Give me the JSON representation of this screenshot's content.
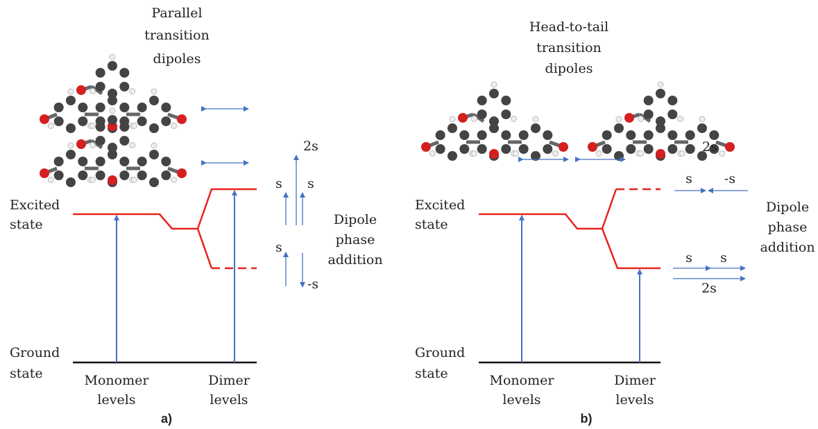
{
  "panels": [
    {
      "title": [
        "Parallel",
        "transition",
        "dipoles"
      ],
      "excited": [
        "Excited",
        "state"
      ],
      "ground": [
        "Ground",
        "state"
      ],
      "monomer": [
        "Monomer",
        "levels"
      ],
      "dimer": [
        "Dimer",
        "levels"
      ],
      "phase": [
        "Dipole",
        "phase",
        "addition"
      ],
      "caption": "a)",
      "vectors": [
        "2s",
        "s",
        "s",
        "s",
        "-s"
      ]
    },
    {
      "title": [
        "Head-to-tail",
        "transition",
        "dipoles"
      ],
      "excited": [
        "Excited",
        "state"
      ],
      "ground": [
        "Ground",
        "state"
      ],
      "monomer": [
        "Monomer",
        "levels"
      ],
      "dimer": [
        "Dimer",
        "levels"
      ],
      "phase": [
        "Dipole",
        "phase",
        "addition"
      ],
      "caption": "b)",
      "vectors": [
        "2s",
        "s",
        "-s",
        "s",
        "s",
        "2s"
      ]
    }
  ]
}
